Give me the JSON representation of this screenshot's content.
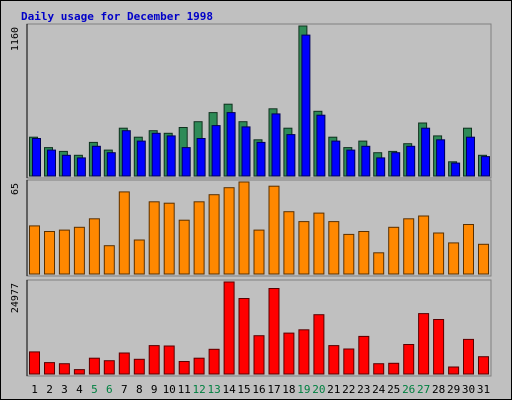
{
  "chart_data": {
    "type": "bar",
    "title": "Daily usage for December 1998",
    "categories": [
      "1",
      "2",
      "3",
      "4",
      "5",
      "6",
      "7",
      "8",
      "9",
      "10",
      "11",
      "12",
      "13",
      "14",
      "15",
      "16",
      "17",
      "18",
      "19",
      "20",
      "21",
      "22",
      "23",
      "24",
      "25",
      "26",
      "27",
      "28",
      "29",
      "30",
      "31"
    ],
    "weekend_days": [
      "5",
      "6",
      "12",
      "13",
      "19",
      "20",
      "26",
      "27"
    ],
    "grid": false,
    "panels": [
      {
        "max_label": "1160",
        "ylim": [
          0,
          1160
        ],
        "series": [
          {
            "color": "#2e8b57",
            "values": [
              300,
              220,
              190,
              160,
              260,
              200,
              370,
              300,
              350,
              330,
              375,
              420,
              490,
              555,
              420,
              280,
              520,
              370,
              1160,
              500,
              300,
              220,
              270,
              180,
              190,
              250,
              410,
              310,
              110,
              370,
              160
            ]
          },
          {
            "color": "#0000ff",
            "values": [
              290,
              200,
              160,
              140,
              230,
              180,
              350,
              270,
              330,
              310,
              220,
              290,
              390,
              490,
              380,
              260,
              480,
              320,
              1090,
              470,
              270,
              200,
              230,
              140,
              180,
              230,
              370,
              280,
              100,
              300,
              150
            ]
          }
        ]
      },
      {
        "max_label": "65",
        "ylim": [
          0,
          65
        ],
        "series": [
          {
            "color": "#ff8800",
            "values": [
              34,
              30,
              31,
              33,
              39,
              20,
              58,
              24,
              51,
              50,
              38,
              51,
              56,
              61,
              65,
              31,
              62,
              44,
              37,
              43,
              37,
              28,
              30,
              15,
              33,
              39,
              41,
              29,
              22,
              35,
              21
            ]
          }
        ]
      },
      {
        "max_label": "24977",
        "ylim": [
          0,
          24977
        ],
        "series": [
          {
            "color": "#ff0000",
            "values": [
              6000,
              3100,
              2800,
              1200,
              4300,
              3600,
              5700,
              4000,
              7700,
              7600,
              3400,
              4300,
              6700,
              24977,
              20500,
              10400,
              23200,
              11100,
              12000,
              16100,
              7700,
              6800,
              10200,
              2800,
              2900,
              8000,
              16400,
              14800,
              1900,
              9400,
              4700
            ]
          }
        ]
      }
    ]
  },
  "colors": {
    "background": "#c0c0c0",
    "plot_background": "#c0c0c0",
    "weekday_label": "#000000",
    "weekend_label": "#008040",
    "title": "#0000c8"
  }
}
